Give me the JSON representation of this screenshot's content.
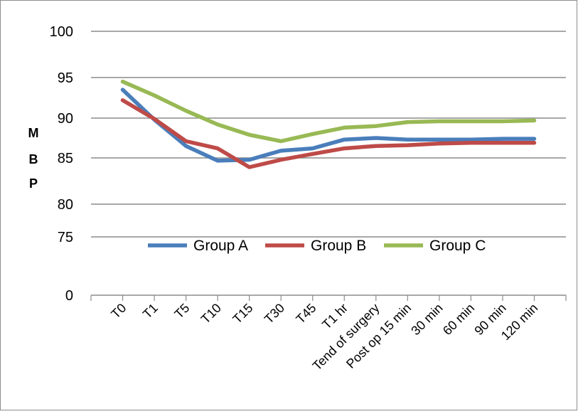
{
  "chart_data": {
    "type": "line",
    "title": "",
    "xlabel": "",
    "ylabel_letters": [
      "M",
      "B",
      "P"
    ],
    "categories": [
      "T0",
      "T1",
      "T5",
      "T10",
      "T15",
      "T30",
      "T45",
      "T1 hr",
      "Tend of surgery",
      "Post op 15 min",
      "30 min",
      "60 min",
      "90 min",
      "120 min"
    ],
    "y_ticks": [
      "0",
      "75",
      "80",
      "85",
      "90",
      "95",
      "100"
    ],
    "y_tick_values": [
      0,
      75,
      80,
      85,
      90,
      95,
      100
    ],
    "axis_note": "non-linear (broken) y axis between 0 and 75",
    "grid": true,
    "legend_position": "inside-middle",
    "series": [
      {
        "name": "Group A",
        "color": "#4A7EBB",
        "values": [
          93.5,
          89.8,
          86.5,
          84.7,
          84.8,
          85.9,
          86.2,
          87.3,
          87.5,
          87.3,
          87.3,
          87.3,
          87.4,
          87.4
        ]
      },
      {
        "name": "Group B",
        "color": "#BE4B48",
        "values": [
          92.2,
          89.9,
          87.1,
          86.2,
          84.0,
          84.8,
          85.5,
          86.2,
          86.5,
          86.6,
          86.8,
          86.9,
          86.9,
          86.9
        ]
      },
      {
        "name": "Group C",
        "color": "#98B954",
        "values": [
          94.5,
          92.8,
          90.9,
          89.2,
          87.9,
          87.1,
          88.0,
          88.8,
          89.0,
          89.5,
          89.6,
          89.6,
          89.6,
          89.7
        ]
      }
    ]
  }
}
